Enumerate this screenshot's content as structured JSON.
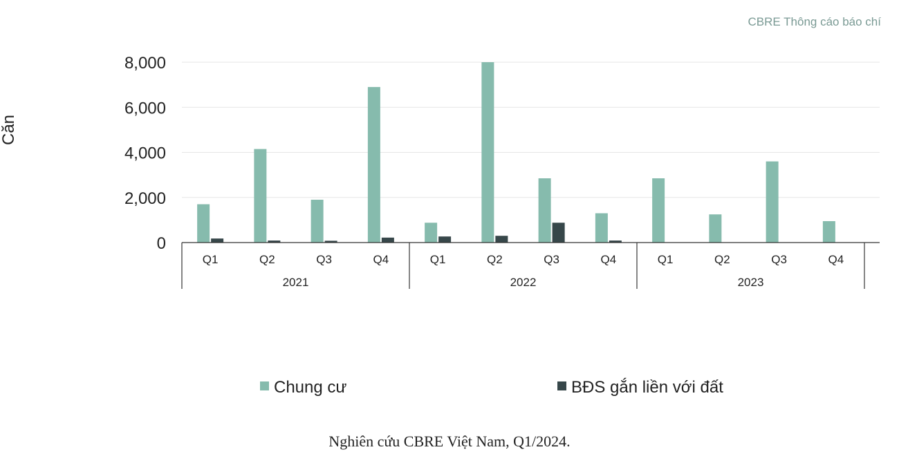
{
  "header": {
    "corner_note": "CBRE Thông cáo báo chí"
  },
  "footer": {
    "source": "Nghiên cứu CBRE Việt Nam, Q1/2024."
  },
  "colors": {
    "chung_cu": "#86bbad",
    "bds_dat": "#37474a",
    "grid": "#e6e6e6",
    "axis": "#333333"
  },
  "chart_data": {
    "type": "bar",
    "title": "",
    "xlabel": "",
    "ylabel": "Căn",
    "ylim": [
      0,
      8000
    ],
    "yticks": [
      0,
      2000,
      4000,
      6000,
      8000
    ],
    "ytick_labels": [
      "0",
      "2,000",
      "4,000",
      "6,000",
      "8,000"
    ],
    "grid": true,
    "legend_position": "bottom",
    "groups": [
      {
        "label": "2021",
        "categories": [
          "Q1",
          "Q2",
          "Q3",
          "Q4"
        ]
      },
      {
        "label": "2022",
        "categories": [
          "Q1",
          "Q2",
          "Q3",
          "Q4"
        ]
      },
      {
        "label": "2023",
        "categories": [
          "Q1",
          "Q2",
          "Q3",
          "Q4"
        ]
      }
    ],
    "categories": [
      "Q1",
      "Q2",
      "Q3",
      "Q4",
      "Q1",
      "Q2",
      "Q3",
      "Q4",
      "Q1",
      "Q2",
      "Q3",
      "Q4"
    ],
    "series": [
      {
        "name": "Chung cư",
        "color": "#86bbad",
        "values": [
          1700,
          4150,
          1900,
          6900,
          880,
          8000,
          2850,
          1300,
          2850,
          1250,
          3600,
          950
        ]
      },
      {
        "name": "BĐS gắn liền với đất",
        "color": "#37474a",
        "values": [
          180,
          90,
          80,
          220,
          270,
          300,
          880,
          90,
          0,
          0,
          0,
          0
        ]
      }
    ]
  }
}
